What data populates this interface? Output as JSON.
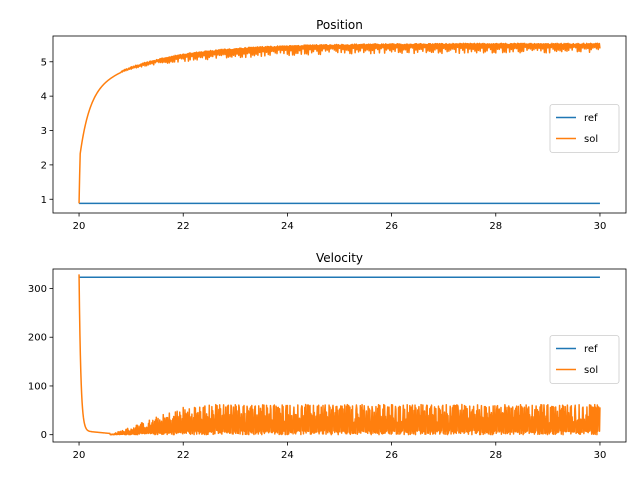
{
  "chart_data": [
    {
      "type": "line",
      "title": "Position",
      "xlabel": "",
      "ylabel": "",
      "xlim": [
        19.5,
        30.5
      ],
      "ylim": [
        0.6,
        5.75
      ],
      "xticks": [
        20,
        22,
        24,
        26,
        28,
        30
      ],
      "yticks": [
        1,
        2,
        3,
        4,
        5
      ],
      "legend": "center-right",
      "series": [
        {
          "name": "ref",
          "color": "#1f77b4",
          "x": [
            20,
            30
          ],
          "y": [
            0.88,
            0.88
          ]
        },
        {
          "name": "sol",
          "color": "#ff7f0e",
          "shape": "exponential-rise-with-oscillation",
          "x_start": 20,
          "x_end": 30,
          "y_start": 0.88,
          "y_plateau": 5.5,
          "oscillation_amplitude": 0.25
        }
      ]
    },
    {
      "type": "line",
      "title": "Velocity",
      "xlabel": "",
      "ylabel": "",
      "xlim": [
        19.5,
        30.5
      ],
      "ylim": [
        -15,
        340
      ],
      "xticks": [
        20,
        22,
        24,
        26,
        28,
        30
      ],
      "yticks": [
        0,
        100,
        200,
        300
      ],
      "legend": "center-right",
      "series": [
        {
          "name": "ref",
          "color": "#1f77b4",
          "x": [
            20,
            30
          ],
          "y": [
            323,
            323
          ]
        },
        {
          "name": "sol",
          "color": "#ff7f0e",
          "shape": "fast-decay-then-spikes",
          "x_start": 20,
          "x_end": 30,
          "y_start": 323,
          "y_min": 0,
          "spike_max": 62
        }
      ]
    }
  ]
}
